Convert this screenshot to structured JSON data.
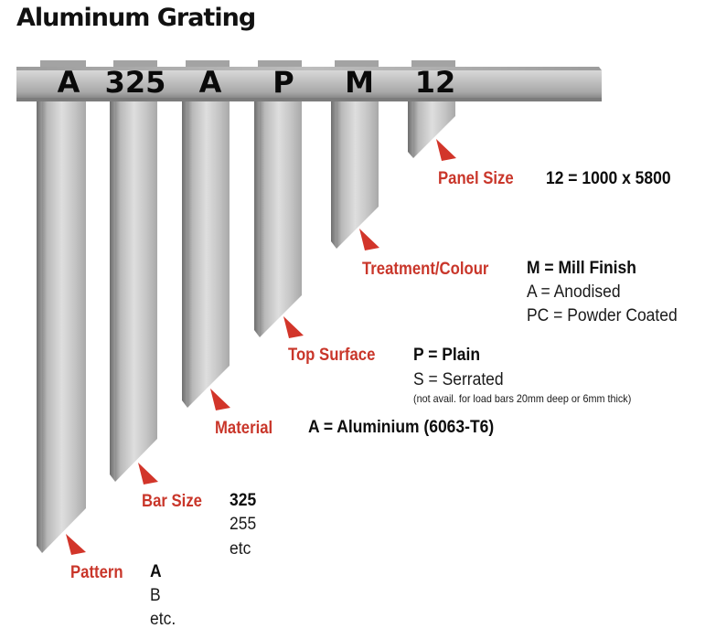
{
  "title": "Aluminum Grating",
  "code_segments": [
    "A",
    "325",
    "A",
    "P",
    "M",
    "12"
  ],
  "fields": [
    {
      "key": "pattern",
      "label": "Pattern",
      "options": [
        "A",
        "B",
        "etc."
      ],
      "default": "A"
    },
    {
      "key": "bar_size",
      "label": "Bar Size",
      "options": [
        "325",
        "255",
        "etc"
      ],
      "default": "325"
    },
    {
      "key": "material",
      "label": "Material",
      "options": [
        "A = Aluminium (6063-T6)"
      ],
      "default": "A = Aluminium (6063-T6)"
    },
    {
      "key": "top_surface",
      "label": "Top Surface",
      "options": [
        "P = Plain",
        "S = Serrated"
      ],
      "default": "P = Plain",
      "note": "(not avail. for load bars 20mm deep or 6mm thick)"
    },
    {
      "key": "treatment",
      "label": "Treatment/Colour",
      "options": [
        "M = Mill Finish",
        "A = Anodised",
        "PC = Powder Coated"
      ],
      "default": "M = Mill Finish"
    },
    {
      "key": "panel_size",
      "label": "Panel Size",
      "options": [
        "12 = 1000 x 5800"
      ],
      "default": "12 = 1000 x 5800"
    }
  ],
  "colors": {
    "label_red": "#c9362a",
    "arrow_red": "#d2352a",
    "text": "#111111",
    "metal": "#c8c8c8"
  }
}
